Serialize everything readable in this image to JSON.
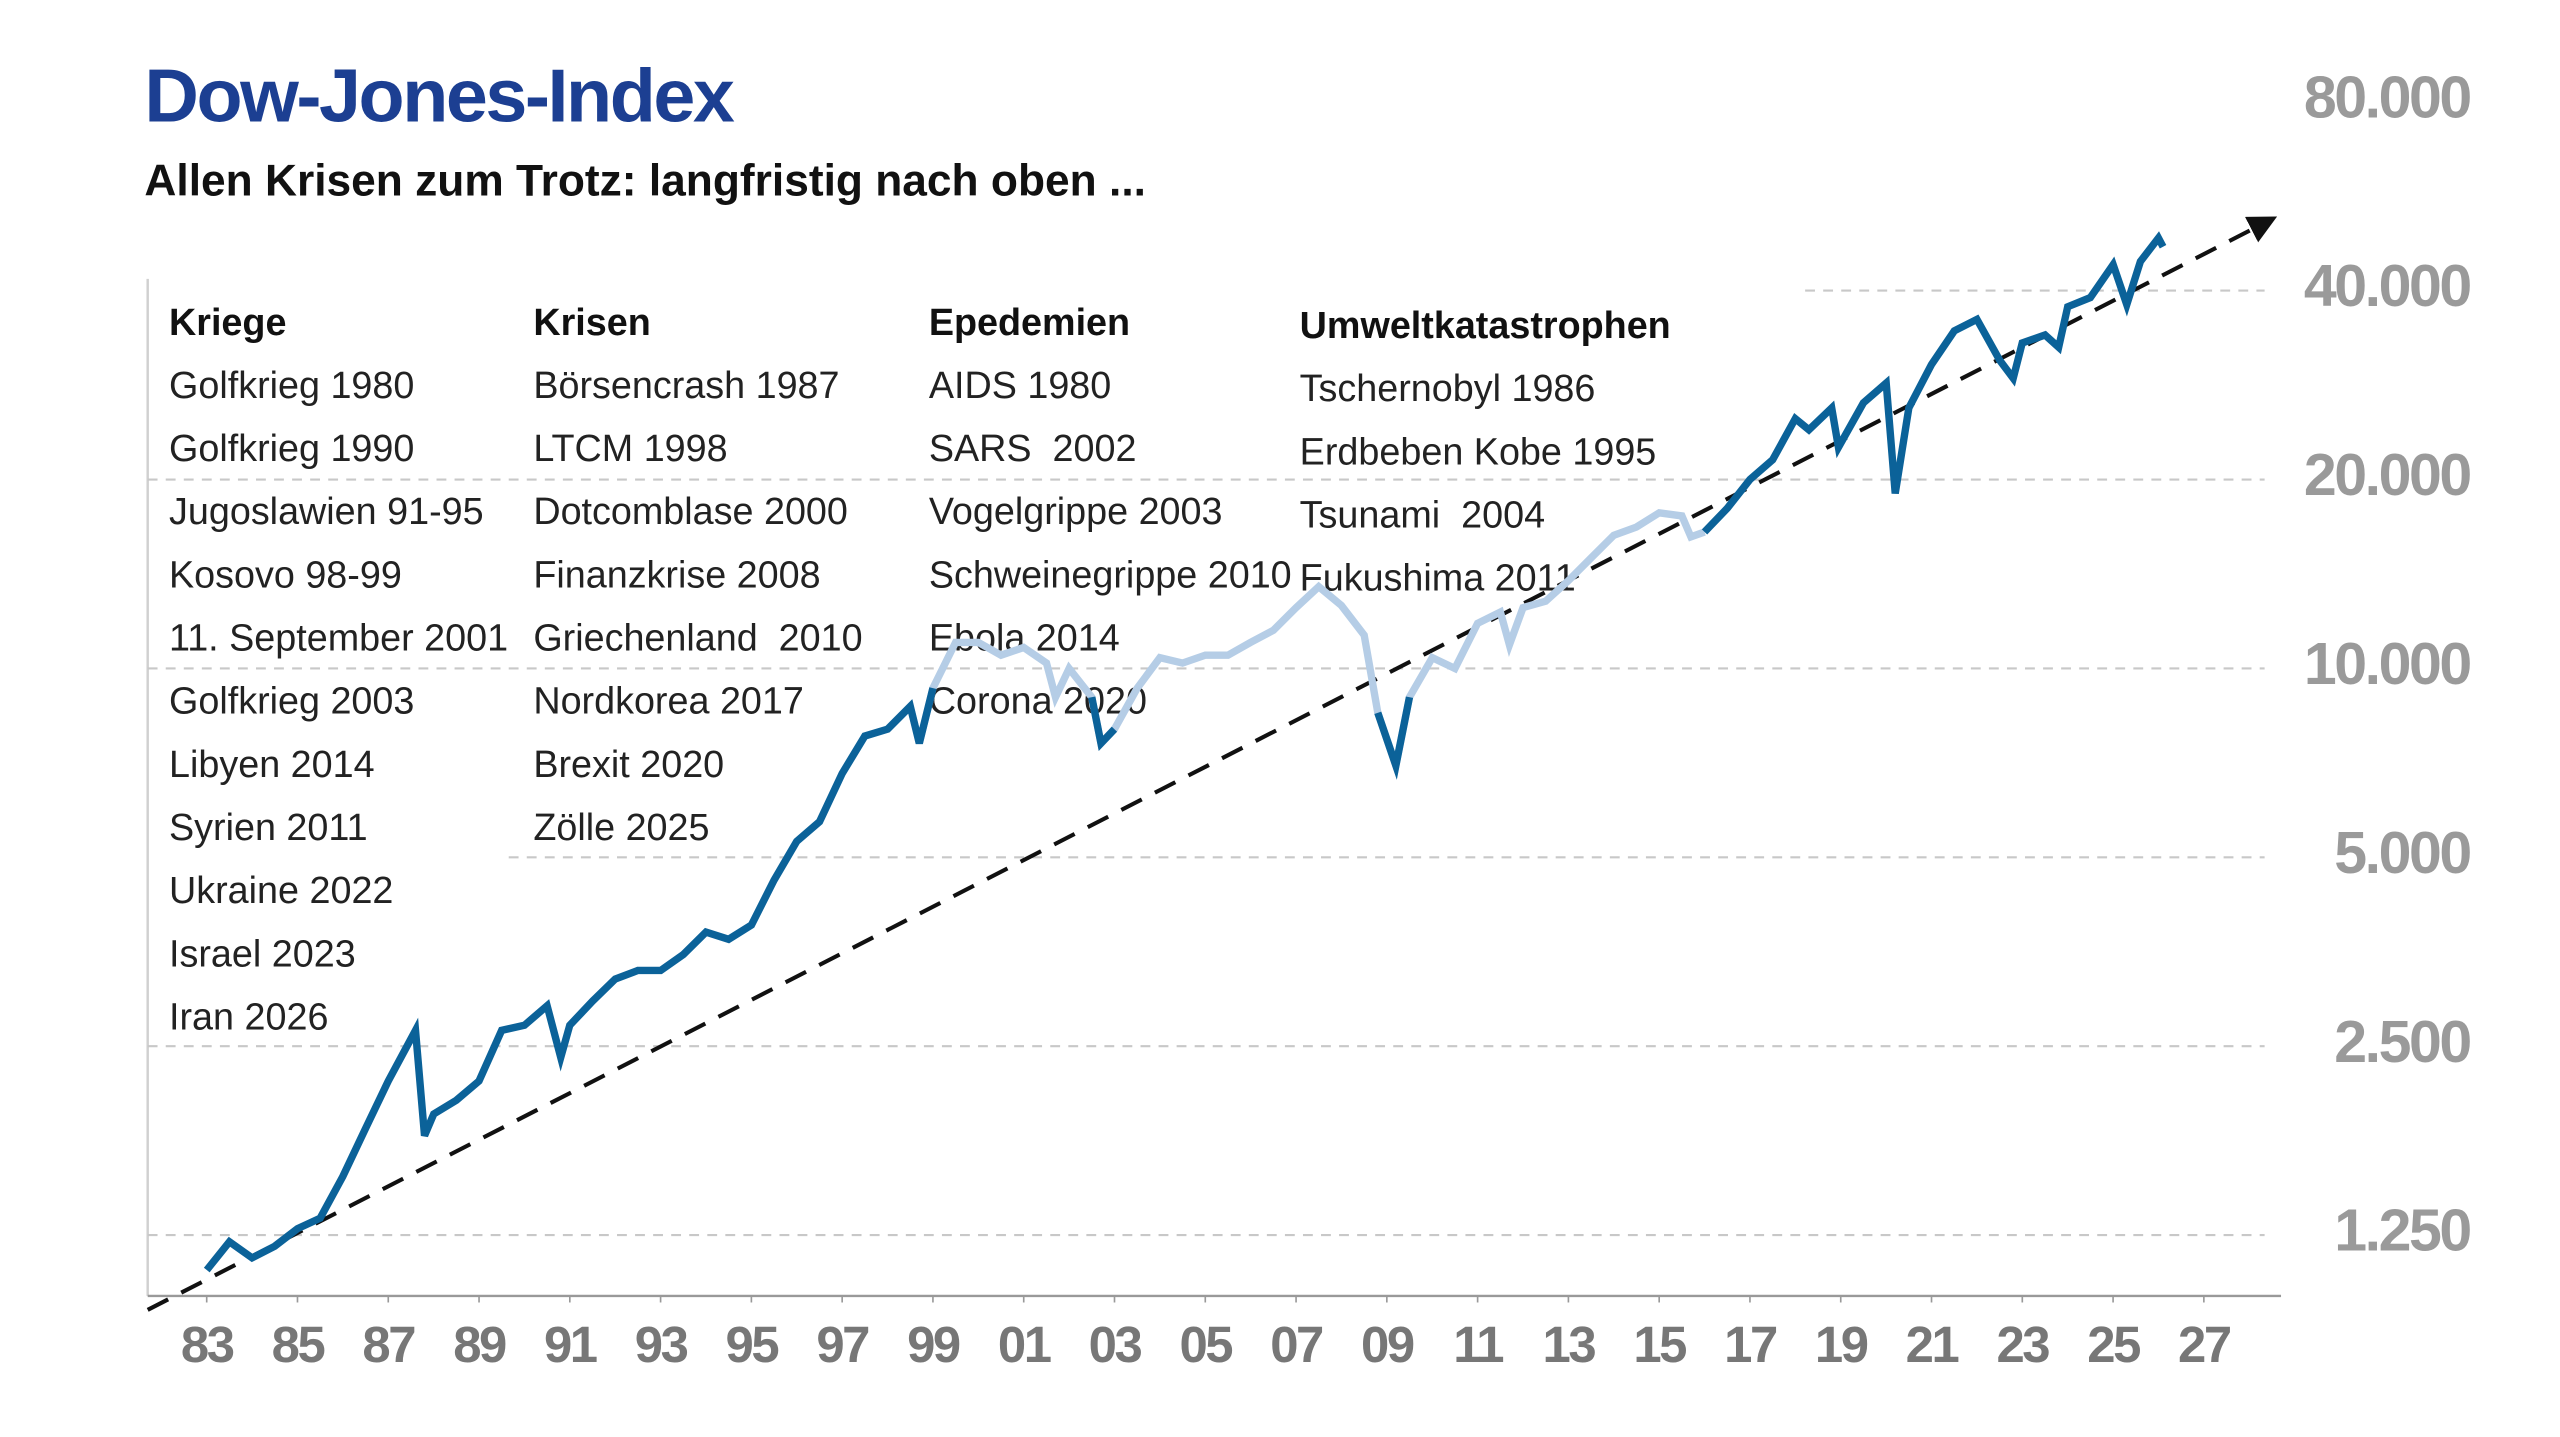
{
  "chart_data": {
    "type": "line",
    "title": "Dow-Jones-Index",
    "subtitle": "Allen Krisen zum Trotz: langfristig nach oben ...",
    "log_scale": true,
    "grid": true,
    "x": [
      1983,
      1983.5,
      1984,
      1984.5,
      1985,
      1985.5,
      1986,
      1986.5,
      1987,
      1987.6,
      1987.8,
      1988,
      1988.5,
      1989,
      1989.5,
      1990,
      1990.5,
      1990.8,
      1991,
      1991.5,
      1992,
      1992.5,
      1993,
      1993.5,
      1994,
      1994.5,
      1995,
      1995.5,
      1996,
      1996.5,
      1997,
      1997.5,
      1998,
      1998.5,
      1998.7,
      1999,
      1999.5,
      2000,
      2000.5,
      2001,
      2001.5,
      2001.7,
      2002,
      2002.5,
      2002.7,
      2003,
      2003.5,
      2004,
      2004.5,
      2005,
      2005.5,
      2006,
      2006.5,
      2007,
      2007.5,
      2008,
      2008.5,
      2008.8,
      2009.2,
      2009.5,
      2010,
      2010.5,
      2011,
      2011.5,
      2011.7,
      2012,
      2012.5,
      2013,
      2013.5,
      2014,
      2014.5,
      2015,
      2015.5,
      2015.7,
      2016,
      2016.5,
      2017,
      2017.5,
      2018,
      2018.3,
      2018.8,
      2018.95,
      2019.5,
      2020,
      2020.2,
      2020.5,
      2021,
      2021.5,
      2022,
      2022.5,
      2022.8,
      2023,
      2023.5,
      2023.8,
      2024,
      2024.5,
      2025,
      2025.3,
      2025.6,
      2026,
      2026.1
    ],
    "series": [
      {
        "color": "#0b6299",
        "values": [
          1100,
          1220,
          1150,
          1200,
          1280,
          1330,
          1550,
          1850,
          2200,
          2650,
          1800,
          1950,
          2050,
          2200,
          2650,
          2700,
          2900,
          2400,
          2700,
          2950,
          3200,
          3300,
          3300,
          3500,
          3800,
          3700,
          3900,
          4600,
          5300,
          5700,
          6800,
          7800,
          8000,
          8700,
          7600,
          9300,
          null,
          null,
          null,
          null,
          null,
          null,
          null,
          9000,
          7600,
          8000,
          null,
          null,
          null,
          null,
          null,
          null,
          null,
          null,
          null,
          null,
          null,
          8500,
          7000,
          9000,
          null,
          null,
          null,
          null,
          null,
          null,
          null,
          null,
          null,
          null,
          null,
          null,
          null,
          null,
          16500,
          18000,
          20000,
          21500,
          25000,
          24000,
          26000,
          22500,
          26500,
          28500,
          19000,
          26000,
          30500,
          34500,
          36000,
          31000,
          29000,
          33000,
          34000,
          32500,
          37700,
          39000,
          44000,
          38000,
          44500,
          48500,
          47000
        ]
      },
      {
        "color": "#b5cde6",
        "values": [
          null,
          null,
          null,
          null,
          null,
          null,
          null,
          null,
          null,
          null,
          null,
          null,
          null,
          null,
          null,
          null,
          null,
          null,
          null,
          null,
          null,
          null,
          null,
          null,
          null,
          null,
          null,
          null,
          null,
          null,
          null,
          null,
          8000,
          8700,
          7600,
          9300,
          11000,
          11000,
          10500,
          10800,
          10200,
          9000,
          10000,
          9000,
          7600,
          8000,
          9300,
          10400,
          10200,
          10500,
          10500,
          11000,
          11500,
          12500,
          13500,
          12600,
          11300,
          8500,
          7000,
          9000,
          10400,
          10000,
          11800,
          12300,
          10900,
          12500,
          12800,
          13800,
          15000,
          16300,
          16800,
          17700,
          17500,
          16200,
          16500,
          null,
          null,
          null,
          null,
          null,
          null,
          null,
          null,
          null,
          null,
          null,
          null,
          null,
          null,
          null,
          null,
          null,
          null,
          null,
          null,
          null,
          null,
          null,
          null,
          null,
          null
        ]
      }
    ],
    "trend": {
      "color": "#111111",
      "x": [
        1981.7,
        2028.5
      ],
      "values": [
        950,
        52000
      ]
    },
    "xlim": [
      1981.7,
      2028.7
    ],
    "xticks": [
      {
        "value": 1983,
        "label": "83"
      },
      {
        "value": 1985,
        "label": "85"
      },
      {
        "value": 1987,
        "label": "87"
      },
      {
        "value": 1989,
        "label": "89"
      },
      {
        "value": 1991,
        "label": "91"
      },
      {
        "value": 1993,
        "label": "93"
      },
      {
        "value": 1995,
        "label": "95"
      },
      {
        "value": 1997,
        "label": "97"
      },
      {
        "value": 1999,
        "label": "99"
      },
      {
        "value": 2001,
        "label": "01"
      },
      {
        "value": 2003,
        "label": "03"
      },
      {
        "value": 2005,
        "label": "05"
      },
      {
        "value": 2007,
        "label": "07"
      },
      {
        "value": 2009,
        "label": "09"
      },
      {
        "value": 2011,
        "label": "11"
      },
      {
        "value": 2013,
        "label": "13"
      },
      {
        "value": 2015,
        "label": "15"
      },
      {
        "value": 2017,
        "label": "17"
      },
      {
        "value": 2019,
        "label": "19"
      },
      {
        "value": 2021,
        "label": "21"
      },
      {
        "value": 2023,
        "label": "23"
      },
      {
        "value": 2025,
        "label": "25"
      },
      {
        "value": 2027,
        "label": "27"
      }
    ],
    "ylim": [
      1000,
      80000
    ],
    "yticks": [
      {
        "value": 1250,
        "label": "1.250"
      },
      {
        "value": 2500,
        "label": "2.500"
      },
      {
        "value": 5000,
        "label": "5.000"
      },
      {
        "value": 10000,
        "label": "10.000"
      },
      {
        "value": 20000,
        "label": "20.000"
      },
      {
        "value": 40000,
        "label": "40.000"
      },
      {
        "value": 80000,
        "label": "80.000"
      }
    ],
    "annotations": [
      {
        "heading": "Kriege",
        "items": [
          "Golfkrieg 1980",
          "Golfkrieg 1990",
          "Jugoslawien 91-95",
          "Kosovo 98-99",
          "11. September 2001",
          "Golfkrieg 2003",
          "Libyen 2014",
          "Syrien 2011",
          "Ukraine 2022",
          "Israel 2023",
          "Iran 2026"
        ]
      },
      {
        "heading": "Krisen",
        "items": [
          "Börsencrash 1987",
          "LTCM 1998",
          "Dotcomblase 2000",
          "Finanzkrise 2008",
          "Griechenland  2010",
          "Nordkorea 2017",
          "Brexit 2020",
          "Zölle 2025"
        ]
      },
      {
        "heading": "Epedemien",
        "items": [
          "AIDS 1980",
          "SARS  2002",
          "Vogelgrippe 2003",
          "Schweinegrippe 2010",
          "Ebola 2014",
          "Corona 2020"
        ]
      },
      {
        "heading": "Umweltkatastrophen",
        "items": [
          "Tschernobyl 1986",
          "Erdbeben Kobe 1995",
          "Tsunami  2004",
          "Fukushima 2011"
        ]
      }
    ]
  }
}
